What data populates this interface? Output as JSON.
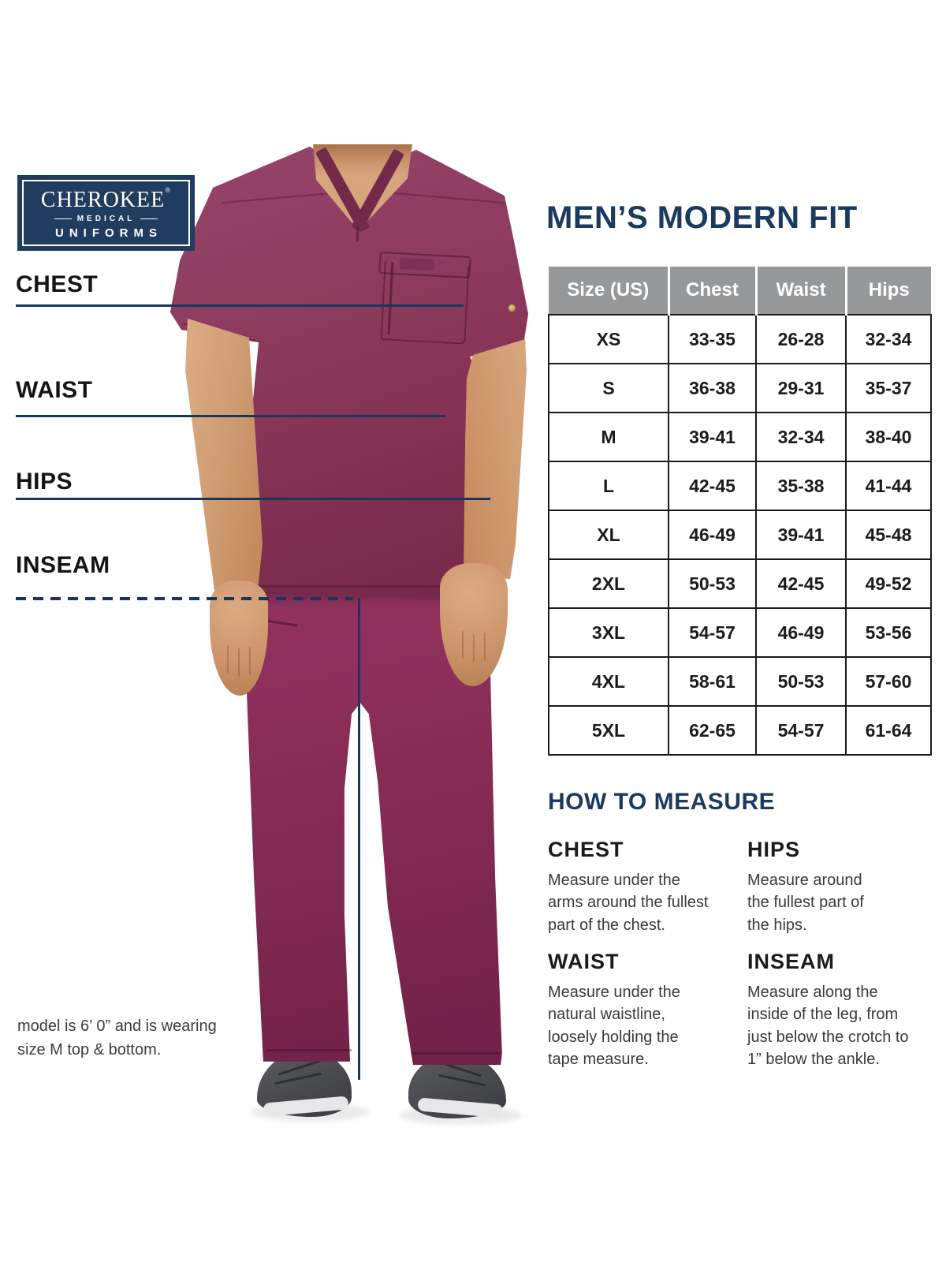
{
  "logo": {
    "brand": "CHEROKEE",
    "reg": "®",
    "medical": "MEDICAL",
    "uniforms": "UNIFORMS"
  },
  "title": "MEN’S MODERN FIT",
  "measurements": {
    "chest": "CHEST",
    "waist": "WAIST",
    "hips": "HIPS",
    "inseam": "INSEAM"
  },
  "size_table": {
    "headers": [
      "Size (US)",
      "Chest",
      "Waist",
      "Hips"
    ],
    "rows": [
      [
        "XS",
        "33-35",
        "26-28",
        "32-34"
      ],
      [
        "S",
        "36-38",
        "29-31",
        "35-37"
      ],
      [
        "M",
        "39-41",
        "32-34",
        "38-40"
      ],
      [
        "L",
        "42-45",
        "35-38",
        "41-44"
      ],
      [
        "XL",
        "46-49",
        "39-41",
        "45-48"
      ],
      [
        "2XL",
        "50-53",
        "42-45",
        "49-52"
      ],
      [
        "3XL",
        "54-57",
        "46-49",
        "53-56"
      ],
      [
        "4XL",
        "58-61",
        "50-53",
        "57-60"
      ],
      [
        "5XL",
        "62-65",
        "54-57",
        "61-64"
      ]
    ]
  },
  "how_to_measure": {
    "heading": "HOW TO MEASURE",
    "items": [
      {
        "label": "CHEST",
        "text": "Measure under the arms around the fullest part of the chest."
      },
      {
        "label": "HIPS",
        "text": "Measure around the fullest part of the hips."
      },
      {
        "label": "WAIST",
        "text": "Measure under the natural waistline, loosely holding the tape measure."
      },
      {
        "label": "INSEAM",
        "text": "Measure along the inside of the leg, from just below the crotch to 1” below the ankle."
      }
    ]
  },
  "model_note": "model is 6’ 0” and is wearing size M top & bottom.",
  "colors": {
    "navy": "#1b3a5f",
    "line_navy": "#17375f",
    "wine_top": "#8c3a5d",
    "wine_pants": "#862b54",
    "table_header_gray": "#97989a",
    "skin": "#d2a077",
    "shoe_gray": "#48494d"
  }
}
